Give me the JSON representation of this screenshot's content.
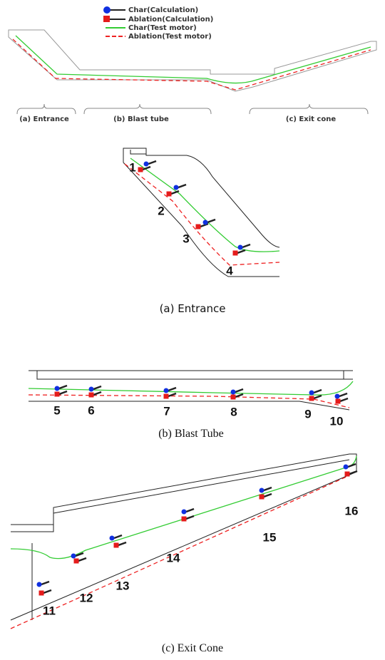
{
  "legend": {
    "items": [
      {
        "label": "Char(Calculation)"
      },
      {
        "label": "Ablation(Calculation)"
      },
      {
        "label": "Char(Test motor)"
      },
      {
        "label": "Ablation(Test motor)"
      }
    ]
  },
  "overview": {
    "sections": [
      "(a) Entrance",
      "(b) Blast tube",
      "(c) Exit cone"
    ]
  },
  "panels": [
    {
      "caption": "(a) Entrance",
      "points": [
        "1",
        "2",
        "3",
        "4"
      ]
    },
    {
      "caption": "(b) Blast Tube",
      "points": [
        "5",
        "6",
        "7",
        "8",
        "9",
        "10"
      ]
    },
    {
      "caption": "(c) Exit Cone",
      "points": [
        "11",
        "12",
        "13",
        "14",
        "15",
        "16"
      ]
    }
  ]
}
